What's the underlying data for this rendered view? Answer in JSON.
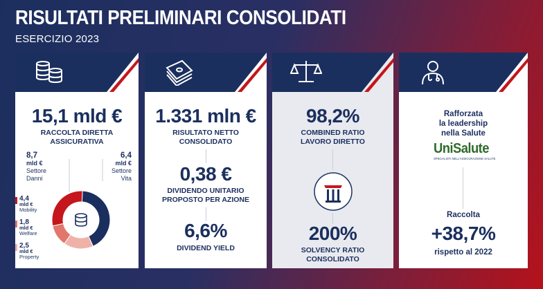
{
  "header": {
    "title": "RISULTATI PRELIMINARI CONSOLIDATI",
    "subtitle": "ESERCIZIO 2023"
  },
  "colors": {
    "navy": "#1b2f5e",
    "red": "#c4161c",
    "rose": "#e2766c",
    "pink": "#efb2a8"
  },
  "col1": {
    "icon": "coins-stack-icon",
    "value": "15,1 mld €",
    "label1": "RACCOLTA DIRETTA",
    "label2": "ASSICURATIVA",
    "danni": {
      "value": "8,7",
      "unit": "mld €",
      "l1": "Settore",
      "l2": "Danni"
    },
    "vita": {
      "value": "6,4",
      "unit": "mld €",
      "l1": "Settore",
      "l2": "Vita"
    },
    "breakdown": [
      {
        "value": "4,4",
        "unit": "mld €",
        "name": "Mobility",
        "color": "#c4161c"
      },
      {
        "value": "1,8",
        "unit": "mld €",
        "name": "Welfare",
        "color": "#e2766c"
      },
      {
        "value": "2,5",
        "unit": "mld €",
        "name": "Property",
        "color": "#efb2a8"
      }
    ],
    "donut_icon": "database-icon"
  },
  "col2": {
    "icon": "banknotes-icon",
    "value1": "1.331 mln €",
    "label1a": "RISULTATO NETTO",
    "label1b": "CONSOLIDATO",
    "value2": "0,38 €",
    "label2a": "DIVIDENDO UNITARIO",
    "label2b": "PROPOSTO PER AZIONE",
    "value3": "6,6%",
    "label3": "DIVIDEND YIELD"
  },
  "col3": {
    "icon": "balance-scale-icon",
    "value1": "98,2%",
    "label1a": "COMBINED RATIO",
    "label1b": "LAVORO DIRETTO",
    "pillar_icon": "pillar-icon",
    "value2": "200%",
    "label2a": "SOLVENCY RATIO",
    "label2b": "CONSOLIDATO"
  },
  "col4": {
    "icon": "doctor-icon",
    "text1": "Rafforzata",
    "text2": "la leadership",
    "text3": "nella Salute",
    "logo_text": "UniSalute",
    "logo_sub": "SPECIALISTI NELL'ASSICURAZIONE SALUTE",
    "raccolta": "Raccolta",
    "value": "+38,7%",
    "rispetto": "rispetto al 2022"
  }
}
